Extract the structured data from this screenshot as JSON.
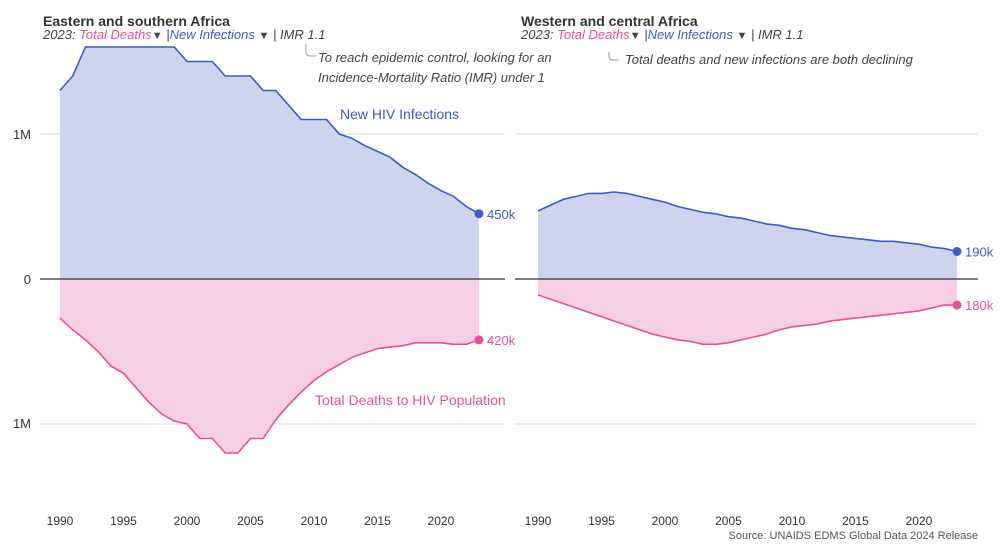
{
  "source": "Source: UNAIDS EDMS Global Data 2024 Release",
  "colors": {
    "infections": "#3d5bc9",
    "infections_fill": "#cdd4ee",
    "deaths": "#e8509d",
    "deaths_fill": "#f7cfe5",
    "grid": "#dddddd",
    "zero": "#333333"
  },
  "chart_data": [
    {
      "type": "area",
      "title": "Eastern and southern Africa",
      "subtitle": {
        "prefix": "2023:",
        "deaths": "Total Deaths",
        "deaths_arrow": "▼",
        "sep": "|",
        "infections": "New Infections",
        "infections_arrow": "▼",
        "imr": "| IMR 1.1"
      },
      "annotation": "To reach epidemic control, looking for an Incidence-Mortality Ratio (IMR) under 1",
      "series_labels": {
        "infections": "New HIV Infections",
        "deaths": "Total Deaths to HIV Population"
      },
      "end_labels": {
        "infections": "450k",
        "deaths": "420k"
      },
      "y_ticks": [
        "1M",
        "0",
        "1M"
      ],
      "x_ticks": [
        "1990",
        "1995",
        "2000",
        "2005",
        "2010",
        "2015",
        "2020"
      ],
      "xlim": [
        1990,
        2023
      ],
      "ylim": [
        -1.5,
        1.6
      ],
      "yunit": "millions (deaths plotted below zero)",
      "x": [
        1990,
        1991,
        1992,
        1993,
        1994,
        1995,
        1996,
        1997,
        1998,
        1999,
        2000,
        2001,
        2002,
        2003,
        2004,
        2005,
        2006,
        2007,
        2008,
        2009,
        2010,
        2011,
        2012,
        2013,
        2014,
        2015,
        2016,
        2017,
        2018,
        2019,
        2020,
        2021,
        2022,
        2023
      ],
      "series": [
        {
          "name": "New HIV Infections",
          "values": [
            1.3,
            1.4,
            1.6,
            1.6,
            1.6,
            1.6,
            1.6,
            1.6,
            1.6,
            1.6,
            1.5,
            1.5,
            1.5,
            1.4,
            1.4,
            1.4,
            1.3,
            1.3,
            1.2,
            1.1,
            1.1,
            1.1,
            1.0,
            0.97,
            0.92,
            0.88,
            0.84,
            0.77,
            0.72,
            0.66,
            0.61,
            0.57,
            0.5,
            0.45
          ]
        },
        {
          "name": "Total Deaths to HIV Population",
          "values": [
            0.27,
            0.35,
            0.42,
            0.5,
            0.6,
            0.65,
            0.75,
            0.85,
            0.93,
            0.98,
            1.0,
            1.1,
            1.1,
            1.2,
            1.2,
            1.1,
            1.1,
            0.97,
            0.87,
            0.78,
            0.7,
            0.64,
            0.59,
            0.54,
            0.51,
            0.48,
            0.47,
            0.46,
            0.44,
            0.44,
            0.44,
            0.45,
            0.45,
            0.42
          ]
        }
      ]
    },
    {
      "type": "area",
      "title": "Western and central Africa",
      "subtitle": {
        "prefix": "2023:",
        "deaths": "Total Deaths",
        "deaths_arrow": "▼",
        "sep": "|",
        "infections": "New Infections",
        "infections_arrow": "▼",
        "imr": "| IMR 1.1"
      },
      "annotation": "Total deaths and new infections are both declining",
      "end_labels": {
        "infections": "190k",
        "deaths": "180k"
      },
      "x_ticks": [
        "1990",
        "1995",
        "2000",
        "2005",
        "2010",
        "2015",
        "2020"
      ],
      "xlim": [
        1990,
        2023
      ],
      "ylim": [
        -1.5,
        1.6
      ],
      "x": [
        1990,
        1991,
        1992,
        1993,
        1994,
        1995,
        1996,
        1997,
        1998,
        1999,
        2000,
        2001,
        2002,
        2003,
        2004,
        2005,
        2006,
        2007,
        2008,
        2009,
        2010,
        2011,
        2012,
        2013,
        2014,
        2015,
        2016,
        2017,
        2018,
        2019,
        2020,
        2021,
        2022,
        2023
      ],
      "series": [
        {
          "name": "New Infections",
          "values": [
            0.47,
            0.51,
            0.55,
            0.57,
            0.59,
            0.59,
            0.6,
            0.59,
            0.57,
            0.55,
            0.53,
            0.5,
            0.48,
            0.46,
            0.45,
            0.43,
            0.42,
            0.4,
            0.38,
            0.37,
            0.35,
            0.34,
            0.32,
            0.3,
            0.29,
            0.28,
            0.27,
            0.26,
            0.26,
            0.25,
            0.24,
            0.22,
            0.21,
            0.19
          ]
        },
        {
          "name": "Total Deaths",
          "values": [
            0.11,
            0.14,
            0.17,
            0.2,
            0.23,
            0.26,
            0.29,
            0.32,
            0.35,
            0.38,
            0.4,
            0.42,
            0.43,
            0.45,
            0.45,
            0.44,
            0.42,
            0.4,
            0.38,
            0.35,
            0.33,
            0.32,
            0.31,
            0.29,
            0.28,
            0.27,
            0.26,
            0.25,
            0.24,
            0.23,
            0.22,
            0.2,
            0.18,
            0.18
          ]
        }
      ]
    }
  ]
}
